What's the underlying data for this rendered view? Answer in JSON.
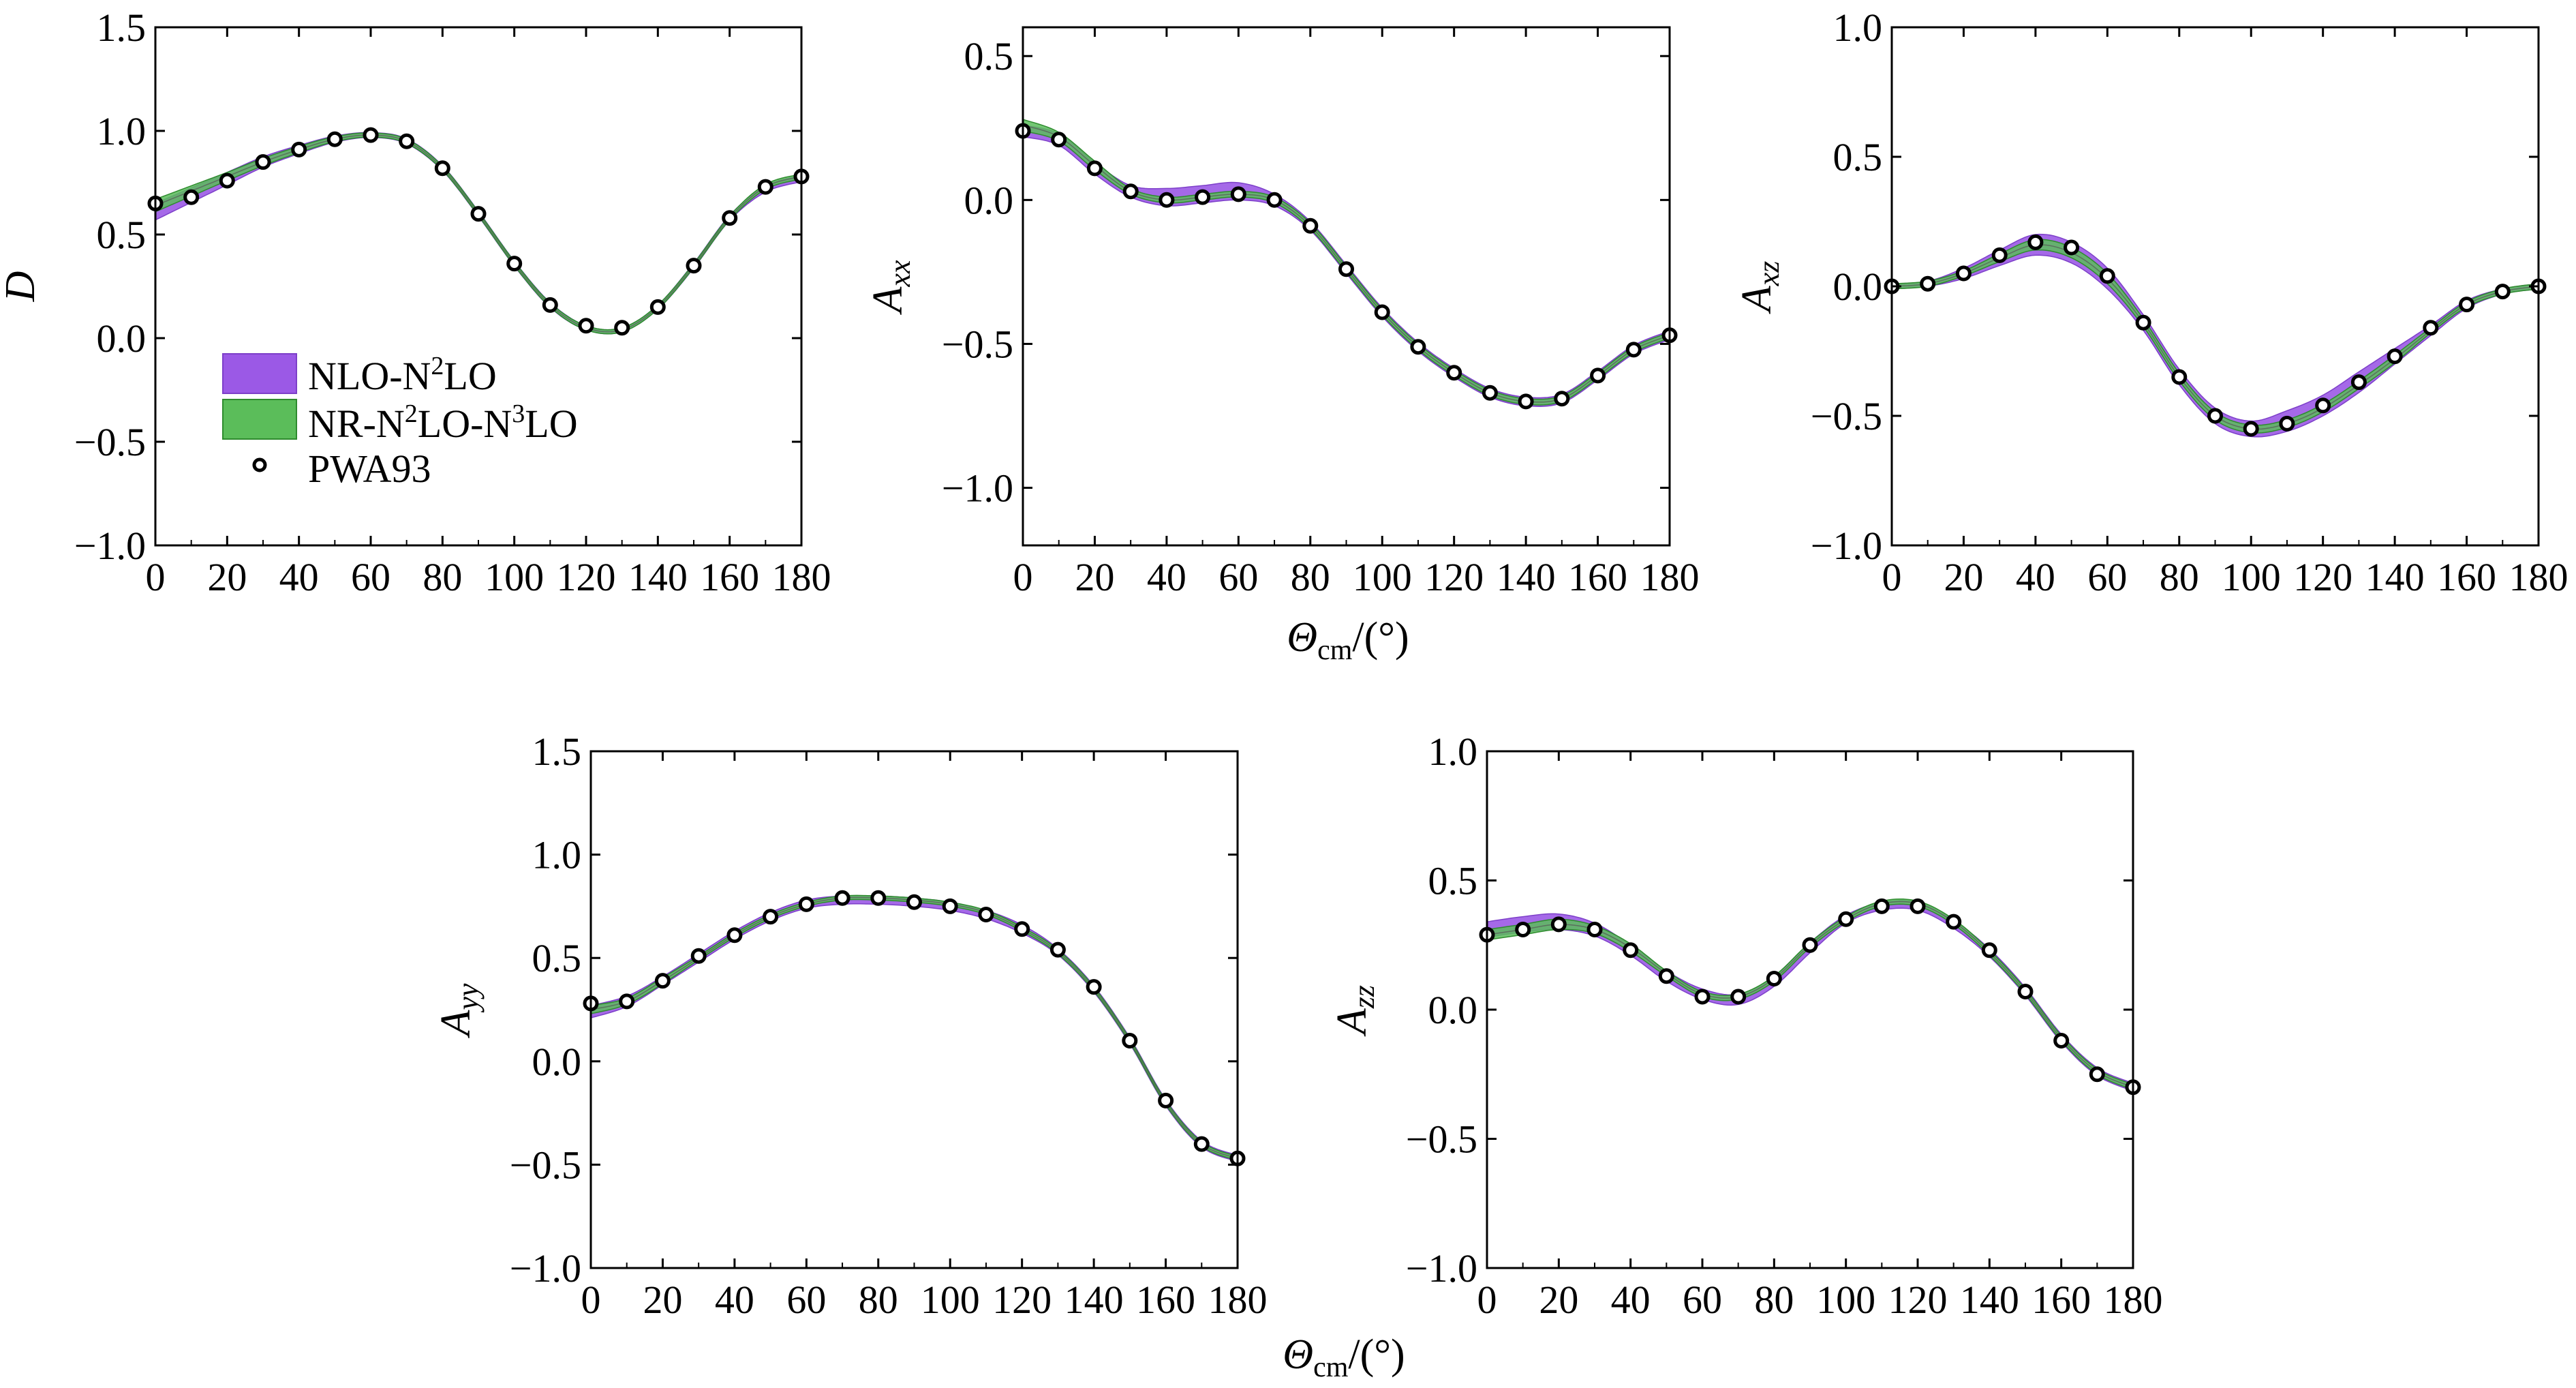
{
  "colors": {
    "nlo_band": "#9b59e6",
    "nlo_edge": "#7d3fc9",
    "nr_band": "#5bbd5a",
    "nr_edge": "#2e8b2e",
    "pwa_marker": "#000000",
    "axes": "#000000",
    "background": "#ffffff"
  },
  "legend": {
    "items": [
      {
        "label_pre": "NLO-N",
        "sup1": "2",
        "label_post": "LO",
        "sup2": "",
        "label_end": "",
        "kind": "band-nlo"
      },
      {
        "label_pre": "NR-N",
        "sup1": "2",
        "label_post": "LO-N",
        "sup2": "3",
        "label_end": "LO",
        "kind": "band-nr"
      },
      {
        "label_pre": "PWA93",
        "sup1": "",
        "label_post": "",
        "sup2": "",
        "label_end": "",
        "kind": "marker"
      }
    ]
  },
  "xlabel": {
    "symbol": "Θ",
    "sub": "cm",
    "unit": "/(°)"
  },
  "chart_data": [
    {
      "type": "line",
      "id": "D",
      "ylabel": "D",
      "ylabel_sub": "",
      "xlim": [
        0,
        180
      ],
      "ylim": [
        -1.0,
        1.5
      ],
      "xticks": [
        0,
        20,
        40,
        60,
        80,
        100,
        120,
        140,
        160,
        180
      ],
      "yticks": [
        -1.0,
        -0.5,
        0.0,
        0.5,
        1.0,
        1.5
      ],
      "ytick_labels": [
        "−1.0",
        "−0.5",
        "0.0",
        "0.5",
        "1.0",
        "1.5"
      ],
      "grid": false,
      "legend": "left",
      "series": [
        {
          "name": "NLO-N2LO",
          "kind": "band",
          "x": [
            0,
            10,
            20,
            30,
            40,
            50,
            60,
            70,
            80,
            90,
            100,
            110,
            120,
            130,
            140,
            150,
            160,
            170,
            180
          ],
          "y": [
            0.61,
            0.69,
            0.77,
            0.85,
            0.91,
            0.96,
            0.98,
            0.95,
            0.82,
            0.6,
            0.36,
            0.16,
            0.05,
            0.04,
            0.15,
            0.35,
            0.58,
            0.72,
            0.77
          ],
          "width": [
            0.04,
            0.035,
            0.03,
            0.025,
            0.02,
            0.015,
            0.012,
            0.012,
            0.012,
            0.012,
            0.012,
            0.012,
            0.01,
            0.01,
            0.01,
            0.012,
            0.012,
            0.015,
            0.015
          ]
        },
        {
          "name": "NR-N2LO-N3LO",
          "kind": "band",
          "x": [
            0,
            10,
            20,
            30,
            40,
            50,
            60,
            70,
            80,
            90,
            100,
            110,
            120,
            130,
            140,
            150,
            160,
            170,
            180
          ],
          "y": [
            0.64,
            0.71,
            0.78,
            0.85,
            0.91,
            0.96,
            0.98,
            0.95,
            0.82,
            0.6,
            0.36,
            0.16,
            0.05,
            0.04,
            0.15,
            0.35,
            0.58,
            0.73,
            0.78
          ],
          "width": [
            0.03,
            0.025,
            0.02,
            0.018,
            0.015,
            0.012,
            0.01,
            0.01,
            0.01,
            0.01,
            0.01,
            0.01,
            0.01,
            0.01,
            0.01,
            0.01,
            0.01,
            0.012,
            0.012
          ]
        },
        {
          "name": "PWA93",
          "kind": "points",
          "x": [
            0,
            10,
            20,
            30,
            40,
            50,
            60,
            70,
            80,
            90,
            100,
            110,
            120,
            130,
            140,
            150,
            160,
            170,
            180
          ],
          "y": [
            0.65,
            0.68,
            0.76,
            0.85,
            0.91,
            0.96,
            0.98,
            0.95,
            0.82,
            0.6,
            0.36,
            0.16,
            0.06,
            0.05,
            0.15,
            0.35,
            0.58,
            0.73,
            0.78
          ]
        }
      ]
    },
    {
      "type": "line",
      "id": "Axx",
      "ylabel": "A",
      "ylabel_sub": "xx",
      "xlim": [
        0,
        180
      ],
      "ylim": [
        -1.2,
        0.6
      ],
      "xticks": [
        0,
        20,
        40,
        60,
        80,
        100,
        120,
        140,
        160,
        180
      ],
      "yticks": [
        -1.0,
        -0.5,
        0.0,
        0.5
      ],
      "ytick_labels": [
        "−1.0",
        "−0.5",
        "0.0",
        "0.5"
      ],
      "grid": false,
      "series": [
        {
          "name": "NLO-N2LO",
          "kind": "band",
          "x": [
            0,
            10,
            20,
            30,
            40,
            50,
            60,
            70,
            80,
            90,
            100,
            110,
            120,
            130,
            140,
            150,
            160,
            170,
            180
          ],
          "y": [
            0.24,
            0.21,
            0.11,
            0.03,
            0.01,
            0.02,
            0.03,
            0.0,
            -0.09,
            -0.24,
            -0.39,
            -0.51,
            -0.6,
            -0.67,
            -0.7,
            -0.69,
            -0.61,
            -0.52,
            -0.47
          ],
          "width": [
            0.02,
            0.02,
            0.02,
            0.02,
            0.03,
            0.03,
            0.03,
            0.02,
            0.015,
            0.015,
            0.015,
            0.015,
            0.015,
            0.015,
            0.015,
            0.015,
            0.015,
            0.015,
            0.015
          ]
        },
        {
          "name": "NR-N2LO-N3LO",
          "kind": "band",
          "x": [
            0,
            10,
            20,
            30,
            40,
            50,
            60,
            70,
            80,
            90,
            100,
            110,
            120,
            130,
            140,
            150,
            160,
            170,
            180
          ],
          "y": [
            0.26,
            0.22,
            0.12,
            0.03,
            0.0,
            0.01,
            0.02,
            0.0,
            -0.09,
            -0.24,
            -0.39,
            -0.51,
            -0.6,
            -0.67,
            -0.7,
            -0.69,
            -0.61,
            -0.52,
            -0.47
          ],
          "width": [
            0.02,
            0.015,
            0.015,
            0.01,
            0.01,
            0.01,
            0.01,
            0.01,
            0.01,
            0.01,
            0.01,
            0.01,
            0.01,
            0.01,
            0.01,
            0.01,
            0.01,
            0.01,
            0.01
          ]
        },
        {
          "name": "PWA93",
          "kind": "points",
          "x": [
            0,
            10,
            20,
            30,
            40,
            50,
            60,
            70,
            80,
            90,
            100,
            110,
            120,
            130,
            140,
            150,
            160,
            170,
            180
          ],
          "y": [
            0.24,
            0.21,
            0.11,
            0.03,
            0.0,
            0.01,
            0.02,
            0.0,
            -0.09,
            -0.24,
            -0.39,
            -0.51,
            -0.6,
            -0.67,
            -0.7,
            -0.69,
            -0.61,
            -0.52,
            -0.47
          ]
        }
      ]
    },
    {
      "type": "line",
      "id": "Axz",
      "ylabel": "A",
      "ylabel_sub": "xz",
      "xlim": [
        0,
        180
      ],
      "ylim": [
        -1.0,
        1.0
      ],
      "xticks": [
        0,
        20,
        40,
        60,
        80,
        100,
        120,
        140,
        160,
        180
      ],
      "yticks": [
        -1.0,
        -0.5,
        0.0,
        0.5,
        1.0
      ],
      "ytick_labels": [
        "−1.0",
        "−0.5",
        "0.0",
        "0.5",
        "1.0"
      ],
      "grid": false,
      "series": [
        {
          "name": "NLO-N2LO",
          "kind": "band",
          "x": [
            0,
            10,
            20,
            30,
            40,
            50,
            60,
            70,
            80,
            90,
            100,
            110,
            120,
            130,
            140,
            150,
            160,
            170,
            180
          ],
          "y": [
            0.0,
            0.01,
            0.05,
            0.11,
            0.16,
            0.13,
            0.03,
            -0.14,
            -0.35,
            -0.5,
            -0.55,
            -0.52,
            -0.46,
            -0.37,
            -0.27,
            -0.17,
            -0.07,
            -0.02,
            0.0
          ],
          "width": [
            0.01,
            0.01,
            0.02,
            0.03,
            0.04,
            0.04,
            0.04,
            0.03,
            0.03,
            0.03,
            0.03,
            0.04,
            0.04,
            0.04,
            0.03,
            0.02,
            0.015,
            0.01,
            0.01
          ]
        },
        {
          "name": "NR-N2LO-N3LO",
          "kind": "band",
          "x": [
            0,
            10,
            20,
            30,
            40,
            50,
            60,
            70,
            80,
            90,
            100,
            110,
            120,
            130,
            140,
            150,
            160,
            170,
            180
          ],
          "y": [
            0.0,
            0.01,
            0.05,
            0.11,
            0.16,
            0.13,
            0.03,
            -0.14,
            -0.35,
            -0.5,
            -0.55,
            -0.53,
            -0.47,
            -0.38,
            -0.28,
            -0.17,
            -0.07,
            -0.02,
            0.0
          ],
          "width": [
            0.01,
            0.01,
            0.01,
            0.015,
            0.02,
            0.02,
            0.02,
            0.015,
            0.015,
            0.015,
            0.015,
            0.015,
            0.015,
            0.015,
            0.015,
            0.01,
            0.01,
            0.01,
            0.01
          ]
        },
        {
          "name": "PWA93",
          "kind": "points",
          "x": [
            0,
            10,
            20,
            30,
            40,
            50,
            60,
            70,
            80,
            90,
            100,
            110,
            120,
            130,
            140,
            150,
            160,
            170,
            180
          ],
          "y": [
            0.0,
            0.01,
            0.05,
            0.12,
            0.17,
            0.15,
            0.04,
            -0.14,
            -0.35,
            -0.5,
            -0.55,
            -0.53,
            -0.46,
            -0.37,
            -0.27,
            -0.16,
            -0.07,
            -0.02,
            0.0
          ]
        }
      ]
    },
    {
      "type": "line",
      "id": "Ayy",
      "ylabel": "A",
      "ylabel_sub": "yy",
      "xlim": [
        0,
        180
      ],
      "ylim": [
        -1.0,
        1.5
      ],
      "xticks": [
        0,
        20,
        40,
        60,
        80,
        100,
        120,
        140,
        160,
        180
      ],
      "yticks": [
        -1.0,
        -0.5,
        0.0,
        0.5,
        1.0,
        1.5
      ],
      "ytick_labels": [
        "−1.0",
        "−0.5",
        "0.0",
        "0.5",
        "1.0",
        "1.5"
      ],
      "grid": false,
      "series": [
        {
          "name": "NLO-N2LO",
          "kind": "band",
          "x": [
            0,
            10,
            20,
            30,
            40,
            50,
            60,
            70,
            80,
            90,
            100,
            110,
            120,
            130,
            140,
            150,
            160,
            170,
            180
          ],
          "y": [
            0.24,
            0.29,
            0.39,
            0.5,
            0.61,
            0.7,
            0.76,
            0.78,
            0.78,
            0.77,
            0.75,
            0.71,
            0.64,
            0.53,
            0.35,
            0.1,
            -0.2,
            -0.4,
            -0.47
          ],
          "width": [
            0.03,
            0.025,
            0.02,
            0.02,
            0.02,
            0.02,
            0.02,
            0.02,
            0.02,
            0.02,
            0.02,
            0.02,
            0.02,
            0.015,
            0.015,
            0.015,
            0.015,
            0.015,
            0.015
          ]
        },
        {
          "name": "NR-N2LO-N3LO",
          "kind": "band",
          "x": [
            0,
            10,
            20,
            30,
            40,
            50,
            60,
            70,
            80,
            90,
            100,
            110,
            120,
            130,
            140,
            150,
            160,
            170,
            180
          ],
          "y": [
            0.25,
            0.29,
            0.39,
            0.5,
            0.61,
            0.7,
            0.76,
            0.79,
            0.79,
            0.78,
            0.76,
            0.72,
            0.64,
            0.53,
            0.35,
            0.1,
            -0.2,
            -0.4,
            -0.47
          ],
          "width": [
            0.02,
            0.015,
            0.015,
            0.01,
            0.01,
            0.01,
            0.01,
            0.01,
            0.01,
            0.01,
            0.01,
            0.01,
            0.01,
            0.01,
            0.01,
            0.01,
            0.01,
            0.01,
            0.01
          ]
        },
        {
          "name": "PWA93",
          "kind": "points",
          "x": [
            0,
            10,
            20,
            30,
            40,
            50,
            60,
            70,
            80,
            90,
            100,
            110,
            120,
            130,
            140,
            150,
            160,
            170,
            180
          ],
          "y": [
            0.28,
            0.29,
            0.39,
            0.51,
            0.61,
            0.7,
            0.76,
            0.79,
            0.79,
            0.77,
            0.75,
            0.71,
            0.64,
            0.54,
            0.36,
            0.1,
            -0.19,
            -0.4,
            -0.47
          ]
        }
      ]
    },
    {
      "type": "line",
      "id": "Azz",
      "ylabel": "A",
      "ylabel_sub": "zz",
      "xlim": [
        0,
        180
      ],
      "ylim": [
        -1.0,
        1.0
      ],
      "xticks": [
        0,
        20,
        40,
        60,
        80,
        100,
        120,
        140,
        160,
        180
      ],
      "yticks": [
        -1.0,
        -0.5,
        0.0,
        0.5,
        1.0
      ],
      "ytick_labels": [
        "−1.0",
        "−0.5",
        "0.0",
        "0.5",
        "1.0"
      ],
      "grid": false,
      "series": [
        {
          "name": "NLO-N2LO",
          "kind": "band",
          "x": [
            0,
            10,
            20,
            30,
            40,
            50,
            60,
            70,
            80,
            90,
            100,
            110,
            120,
            130,
            140,
            150,
            160,
            170,
            180
          ],
          "y": [
            0.31,
            0.33,
            0.34,
            0.31,
            0.23,
            0.13,
            0.06,
            0.04,
            0.11,
            0.24,
            0.35,
            0.4,
            0.4,
            0.33,
            0.22,
            0.07,
            -0.11,
            -0.24,
            -0.3
          ],
          "width": [
            0.03,
            0.03,
            0.03,
            0.025,
            0.02,
            0.02,
            0.02,
            0.02,
            0.02,
            0.02,
            0.015,
            0.015,
            0.015,
            0.015,
            0.015,
            0.015,
            0.015,
            0.015,
            0.015
          ]
        },
        {
          "name": "NR-N2LO-N3LO",
          "kind": "band",
          "x": [
            0,
            10,
            20,
            30,
            40,
            50,
            60,
            70,
            80,
            90,
            100,
            110,
            120,
            130,
            140,
            150,
            160,
            170,
            180
          ],
          "y": [
            0.29,
            0.31,
            0.33,
            0.31,
            0.24,
            0.14,
            0.06,
            0.05,
            0.12,
            0.25,
            0.35,
            0.41,
            0.41,
            0.34,
            0.22,
            0.07,
            -0.11,
            -0.24,
            -0.3
          ],
          "width": [
            0.02,
            0.02,
            0.02,
            0.015,
            0.015,
            0.01,
            0.01,
            0.01,
            0.01,
            0.01,
            0.01,
            0.01,
            0.01,
            0.01,
            0.01,
            0.01,
            0.01,
            0.01,
            0.01
          ]
        },
        {
          "name": "PWA93",
          "kind": "points",
          "x": [
            0,
            10,
            20,
            30,
            40,
            50,
            60,
            70,
            80,
            90,
            100,
            110,
            120,
            130,
            140,
            150,
            160,
            170,
            180
          ],
          "y": [
            0.29,
            0.31,
            0.33,
            0.31,
            0.23,
            0.13,
            0.05,
            0.05,
            0.12,
            0.25,
            0.35,
            0.4,
            0.4,
            0.34,
            0.23,
            0.07,
            -0.12,
            -0.25,
            -0.3
          ]
        }
      ]
    }
  ]
}
